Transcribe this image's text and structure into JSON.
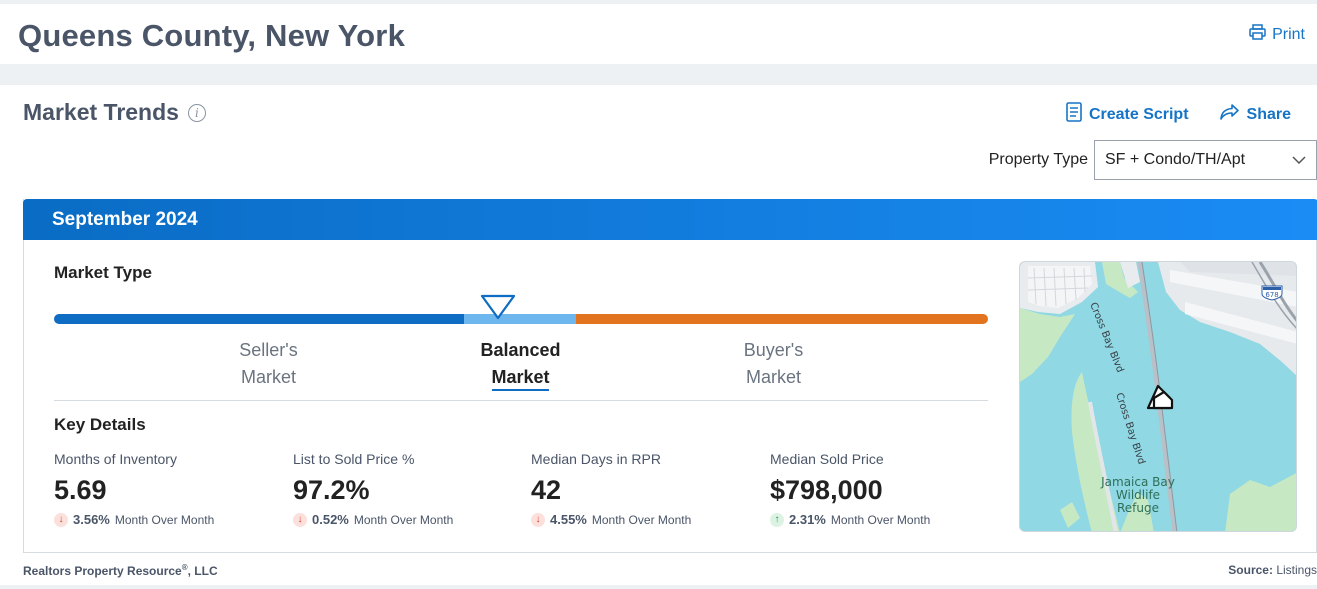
{
  "header": {
    "title": "Queens County, New York",
    "print_label": "Print"
  },
  "market_trends": {
    "title": "Market Trends",
    "create_script_label": "Create Script",
    "share_label": "Share",
    "property_type_label": "Property Type",
    "property_type_value": "SF + Condo/TH/Apt"
  },
  "period": {
    "label": "September 2024"
  },
  "market_type": {
    "heading": "Market Type",
    "segments": [
      {
        "line1": "Seller's",
        "line2": "Market",
        "active": false
      },
      {
        "line1": "Balanced",
        "line2": "Market",
        "active": true
      },
      {
        "line1": "Buyer's",
        "line2": "Market",
        "active": false
      }
    ],
    "colors": {
      "seller": "#0e6cc2",
      "balanced": "#6eb7ee",
      "buyer": "#e2731f"
    }
  },
  "key_details": {
    "heading": "Key Details",
    "stats": [
      {
        "label": "Months of Inventory",
        "value": "5.69",
        "change": "3.56%",
        "direction": "down",
        "period": "Month Over Month"
      },
      {
        "label": "List to Sold Price %",
        "value": "97.2%",
        "change": "0.52%",
        "direction": "down",
        "period": "Month Over Month"
      },
      {
        "label": "Median Days in RPR",
        "value": "42",
        "change": "4.55%",
        "direction": "down",
        "period": "Month Over Month"
      },
      {
        "label": "Median Sold Price",
        "value": "$798,000",
        "change": "2.31%",
        "direction": "up",
        "period": "Month Over Month"
      }
    ]
  },
  "map": {
    "road_label_1": "Cross Bay Blvd",
    "road_label_2": "Cross Bay Blvd",
    "place_label_line1": "Jamaica Bay",
    "place_label_line2": "Wildlife",
    "place_label_line3": "Refuge",
    "highway_shield": "678"
  },
  "footer": {
    "company": "Realtors Property Resource",
    "company_suffix": ", LLC",
    "registered_mark": "®",
    "source_label": "Source:",
    "source_value": "Listings"
  }
}
